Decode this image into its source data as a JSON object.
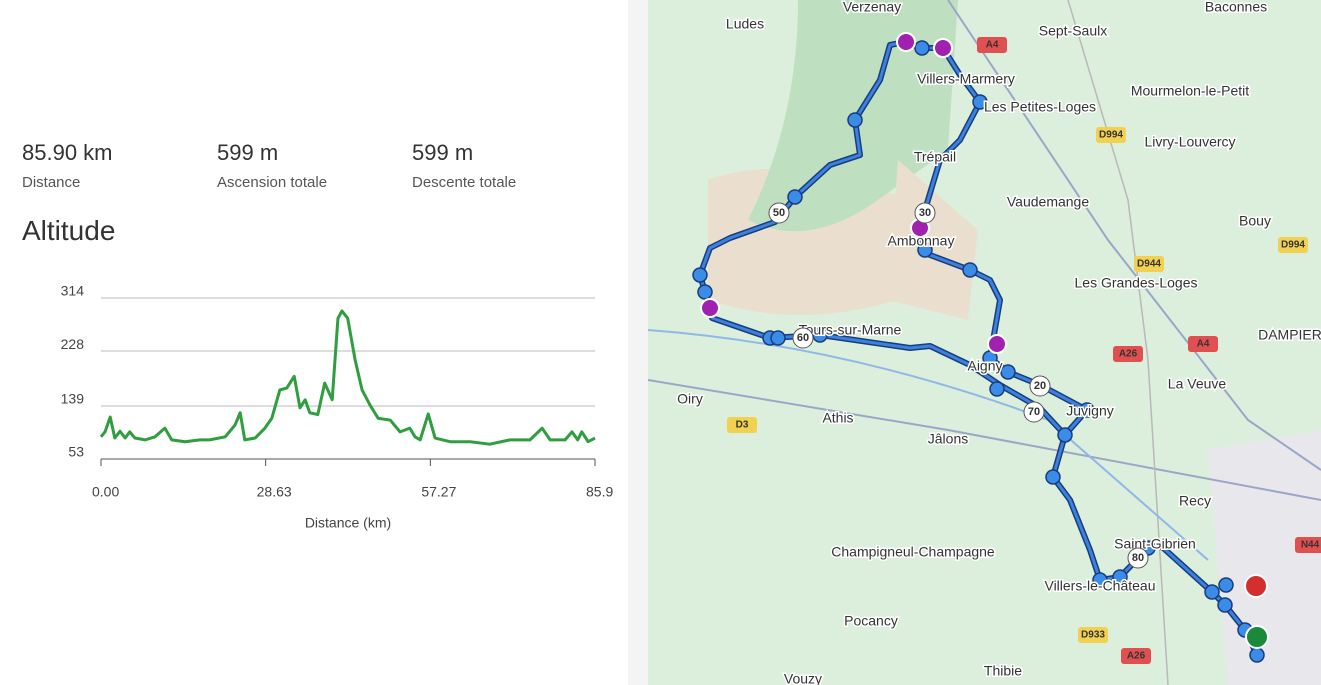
{
  "stats": [
    {
      "value": "85.90 km",
      "label": "Distance"
    },
    {
      "value": "599 m",
      "label": "Ascension totale"
    },
    {
      "value": "599 m",
      "label": "Descente totale"
    }
  ],
  "chart_data": {
    "type": "line",
    "title": "Altitude",
    "x_label": "Distance (km)",
    "color": "#2e9e3e",
    "x": [
      0,
      0.7,
      1.6,
      2.4,
      3.3,
      4.2,
      5.0,
      5.9,
      7.7,
      9.4,
      11.1,
      12.3,
      14.6,
      17.2,
      18.9,
      21.6,
      23.3,
      24.2,
      25.0,
      26.8,
      28.5,
      29.7,
      31.1,
      32.3,
      33.6,
      34.6,
      35.5,
      36.3,
      37.7,
      38.9,
      40.2,
      41.2,
      41.9,
      42.9,
      44.2,
      45.4,
      46.8,
      48.2,
      50.3,
      52.0,
      53.7,
      54.6,
      55.5,
      56.9,
      58.1,
      60.7,
      64.2,
      67.6,
      71.1,
      74.6,
      76.7,
      78.1,
      80.7,
      81.9,
      82.9,
      83.6,
      84.7,
      85.9
    ],
    "values": [
      89,
      97,
      121,
      87,
      98,
      87,
      97,
      87,
      84,
      89,
      103,
      84,
      81,
      84,
      84,
      89,
      108,
      128,
      84,
      87,
      103,
      119,
      165,
      168,
      187,
      136,
      149,
      128,
      125,
      176,
      149,
      281,
      293,
      281,
      213,
      165,
      140,
      119,
      116,
      97,
      103,
      89,
      84,
      126,
      87,
      81,
      81,
      77,
      84,
      84,
      103,
      84,
      84,
      97,
      84,
      97,
      81,
      87
    ],
    "xlim": [
      0,
      85.9
    ],
    "xticks": [
      {
        "value": 0,
        "label": "0.00"
      },
      28.63,
      57.27,
      85.9
    ],
    "ylim": [
      53,
      314
    ],
    "yticks": [
      53,
      139,
      228,
      314
    ],
    "grid": true
  },
  "map": {
    "places": [
      "Verzenay",
      "Ludes",
      "Sept-Saulx",
      "Baconnes",
      "Mourmelon-le-Petit",
      "Villers-Marmery",
      "Les Petites-Loges",
      "Livry-Louvercy",
      "Trépail",
      "Vaudemange",
      "Bouy",
      "Ambonnay",
      "Les Grandes-Loges",
      "Tours-sur-Marne",
      "La Veuve",
      "Oiry",
      "Athis",
      "Jâlons",
      "Recy",
      "Saint-Gibrien",
      "Champigneul-Champagne",
      "Villers-le-Château",
      "Pocancy",
      "Thibie",
      "Vouzy",
      "DAMPIER",
      "Aigny",
      "Juvigny"
    ],
    "roads": [
      "A4",
      "D994",
      "D994",
      "D944",
      "A26",
      "A4",
      "D3",
      "D933",
      "A26",
      "N44"
    ],
    "km_markers": [
      "50",
      "60",
      "30",
      "20",
      "70",
      "80"
    ]
  }
}
